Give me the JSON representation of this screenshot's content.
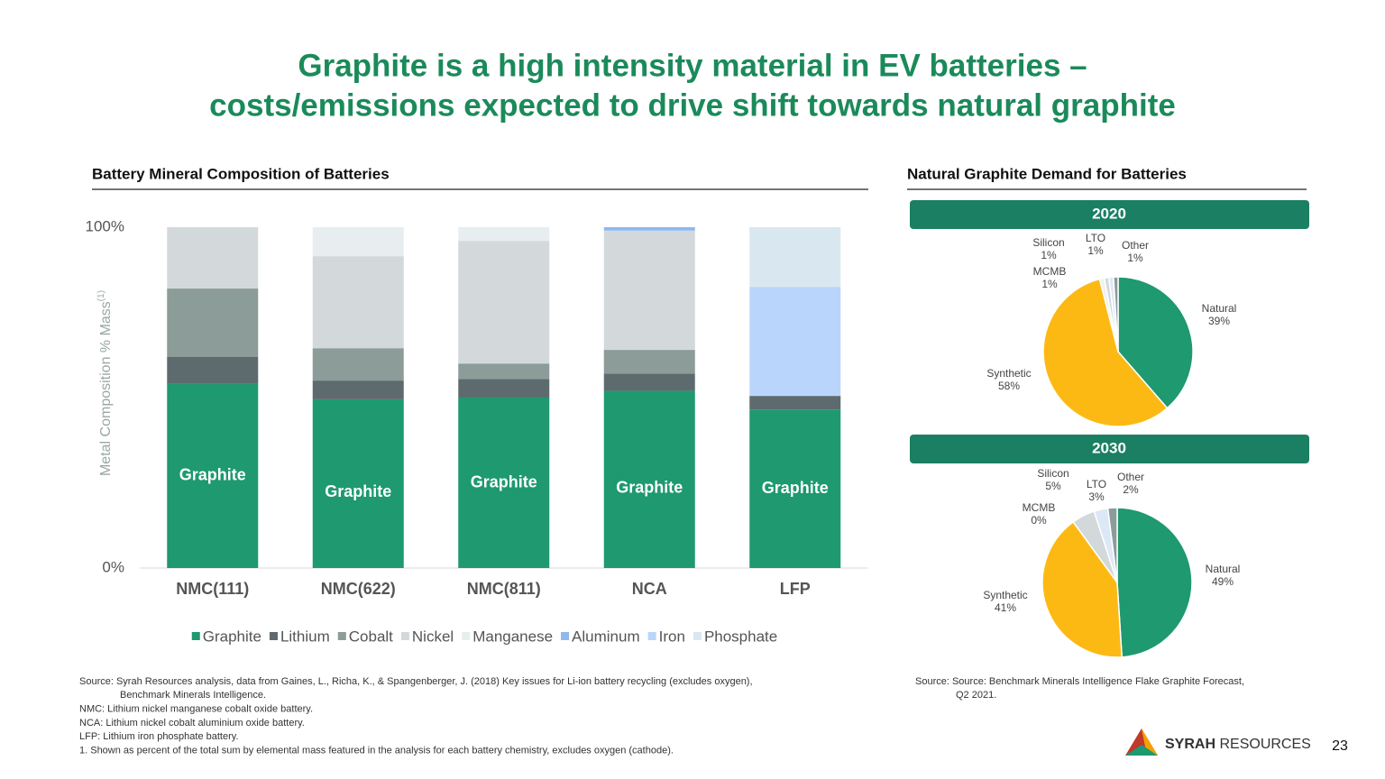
{
  "title_lines": [
    "Graphite is a high intensity material in EV batteries –",
    "costs/emissions expected to drive shift towards natural graphite"
  ],
  "right_heading": "Natural Graphite Demand for Batteries",
  "chart_data": [
    {
      "type": "bar",
      "stacked": true,
      "title": "Battery Mineral Composition of Batteries",
      "y_label": "Metal Composition % Mass",
      "y_label_note": "(1)",
      "categories": [
        "NMC(111)",
        "NMC(622)",
        "NMC(811)",
        "NCA",
        "LFP"
      ],
      "ylim": [
        0,
        100
      ],
      "yticks": [
        {
          "value": 0,
          "label": "0%"
        },
        {
          "value": 100,
          "label": "100%"
        }
      ],
      "series": [
        {
          "name": "Graphite",
          "color": "#1e9970",
          "values": [
            54,
            49.5,
            50,
            52,
            46.5
          ]
        },
        {
          "name": "Lithium",
          "color": "#5e6b6e",
          "values": [
            8,
            5.5,
            5.5,
            5,
            4
          ]
        },
        {
          "name": "Cobalt",
          "color": "#8c9c98",
          "values": [
            20,
            9.5,
            4.5,
            7,
            null
          ]
        },
        {
          "name": "Nickel",
          "color": "#d3d9db",
          "values": [
            18,
            27,
            36,
            35,
            null
          ]
        },
        {
          "name": "Manganese",
          "color": "#e8edef",
          "values": [
            null,
            8.5,
            4,
            null,
            null
          ]
        },
        {
          "name": "Aluminum",
          "color": "#8fb8ef",
          "values": [
            null,
            null,
            null,
            1,
            null
          ]
        },
        {
          "name": "Iron",
          "color": "#b9d5fb",
          "values": [
            null,
            null,
            null,
            null,
            32
          ]
        },
        {
          "name": "Phosphate",
          "color": "#d9e8f0",
          "values": [
            null,
            null,
            null,
            null,
            17.5
          ]
        }
      ]
    },
    {
      "type": "pie",
      "title": "2020",
      "categories": [
        "Natural",
        "Synthetic",
        "MCMB",
        "Silicon",
        "LTO",
        "Other"
      ],
      "values": [
        39,
        58,
        1,
        1,
        1,
        1
      ],
      "value_labels": [
        "39%",
        "58%",
        "1%",
        "1%",
        "1%",
        "1%"
      ],
      "colors": [
        "#1e9970",
        "#fdb913",
        "#eef1f2",
        "#d3d9db",
        "#dbe9f7",
        "#8c9c98"
      ]
    },
    {
      "type": "pie",
      "title": "2030",
      "categories": [
        "Natural",
        "Synthetic",
        "MCMB",
        "Silicon",
        "LTO",
        "Other"
      ],
      "values": [
        49,
        41,
        0,
        5,
        3,
        2
      ],
      "value_labels": [
        "49%",
        "41%",
        "0%",
        "5%",
        "3%",
        "2%"
      ],
      "colors": [
        "#1e9970",
        "#fdb913",
        "#eef1f2",
        "#d3d9db",
        "#dbe9f7",
        "#8c9c98"
      ]
    }
  ],
  "left_notes": [
    "Source: Syrah Resources analysis, data from Gaines, L., Richa, K., & Spangenberger, J. (2018) Key issues for Li-ion battery recycling (excludes oxygen),",
    "Benchmark Minerals Intelligence.",
    "NMC: Lithium nickel manganese cobalt oxide battery.",
    "NCA: Lithium nickel cobalt aluminium oxide battery.",
    "LFP: Lithium iron phosphate battery.",
    "1. Shown as percent of the total sum by elemental mass featured in the analysis for each battery chemistry, excludes oxygen (cathode)."
  ],
  "right_notes": [
    "Source: Source: Benchmark Minerals Intelligence Flake Graphite Forecast,",
    "Q2 2021."
  ],
  "logo": {
    "bold": "SYRAH",
    "rest": "RESOURCES"
  },
  "page_number": "23"
}
